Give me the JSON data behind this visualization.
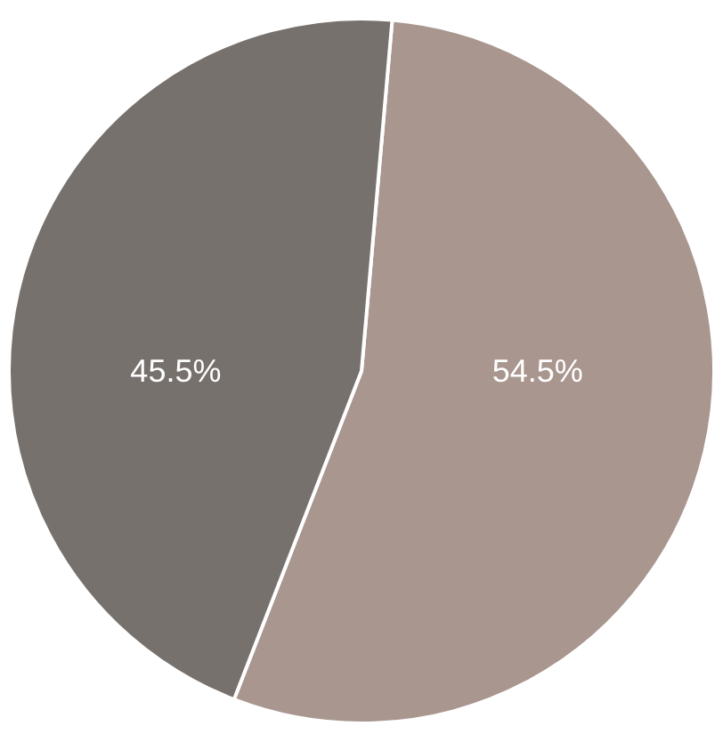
{
  "chart_data": {
    "type": "pie",
    "categories": [
      null,
      null
    ],
    "values": [
      54.5,
      45.5
    ],
    "colors": [
      "#a8968f",
      "#77716d"
    ],
    "value_labels": [
      "54.5%",
      "45.5%"
    ]
  }
}
